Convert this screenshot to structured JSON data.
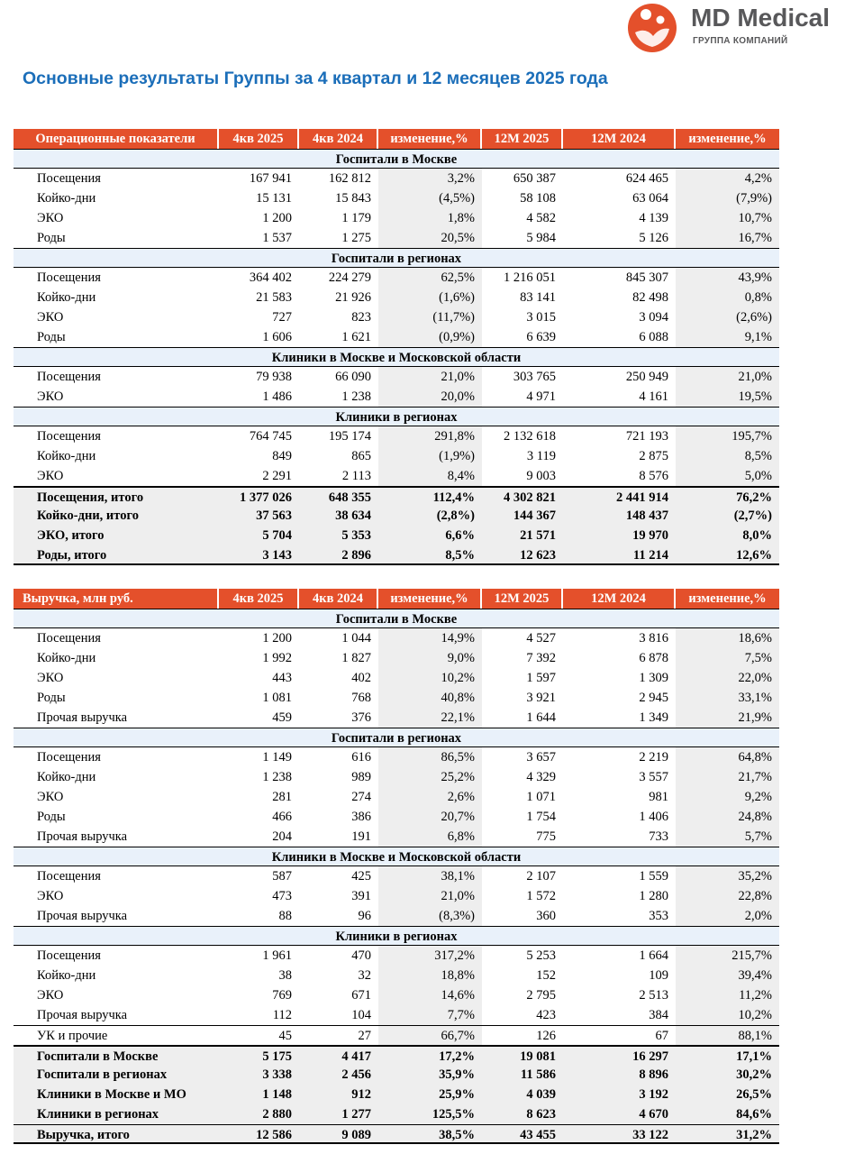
{
  "logo": {
    "name": "MD Medical",
    "subtitle": "ГРУППА КОМПАНИЙ"
  },
  "title": "Основные результаты Группы за 4 квартал и 12 месяцев 2025 года",
  "tables": [
    {
      "header": [
        "Операционные показатели",
        "4кв 2025",
        "4кв 2024",
        "изменение,%",
        "12М 2025",
        "12М 2024",
        "изменение,%"
      ],
      "sections": [
        {
          "title": "Госпитали в Москве",
          "rows": [
            [
              "Посещения",
              "167 941",
              "162 812",
              "3,2%",
              "650 387",
              "624 465",
              "4,2%"
            ],
            [
              "Койко-дни",
              "15 131",
              "15 843",
              "(4,5%)",
              "58 108",
              "63 064",
              "(7,9%)"
            ],
            [
              "ЭКО",
              "1 200",
              "1 179",
              "1,8%",
              "4 582",
              "4 139",
              "10,7%"
            ],
            [
              "Роды",
              "1 537",
              "1 275",
              "20,5%",
              "5 984",
              "5 126",
              "16,7%"
            ]
          ]
        },
        {
          "title": "Госпитали в регионах",
          "rows": [
            [
              "Посещения",
              "364 402",
              "224 279",
              "62,5%",
              "1 216 051",
              "845 307",
              "43,9%"
            ],
            [
              "Койко-дни",
              "21 583",
              "21 926",
              "(1,6%)",
              "83 141",
              "82 498",
              "0,8%"
            ],
            [
              "ЭКО",
              "727",
              "823",
              "(11,7%)",
              "3 015",
              "3 094",
              "(2,6%)"
            ],
            [
              "Роды",
              "1 606",
              "1 621",
              "(0,9%)",
              "6 639",
              "6 088",
              "9,1%"
            ]
          ]
        },
        {
          "title": "Клиники в Москве и Московской области",
          "rows": [
            [
              "Посещения",
              "79 938",
              "66 090",
              "21,0%",
              "303 765",
              "250 949",
              "21,0%"
            ],
            [
              "ЭКО",
              "1 486",
              "1 238",
              "20,0%",
              "4 971",
              "4 161",
              "19,5%"
            ]
          ]
        },
        {
          "title": "Клиники в регионах",
          "rows": [
            [
              "Посещения",
              "764 745",
              "195 174",
              "291,8%",
              "2 132 618",
              "721 193",
              "195,7%"
            ],
            [
              "Койко-дни",
              "849",
              "865",
              "(1,9%)",
              "3 119",
              "2 875",
              "8,5%"
            ],
            [
              "ЭКО",
              "2 291",
              "2 113",
              "8,4%",
              "9 003",
              "8 576",
              "5,0%"
            ]
          ]
        }
      ],
      "totals": [
        [
          "Посещения, итого",
          "1 377 026",
          "648 355",
          "112,4%",
          "4 302 821",
          "2 441 914",
          "76,2%"
        ],
        [
          "Койко-дни, итого",
          "37 563",
          "38 634",
          "(2,8%)",
          "144 367",
          "148 437",
          "(2,7%)"
        ],
        [
          "ЭКО, итого",
          "5 704",
          "5 353",
          "6,6%",
          "21 571",
          "19 970",
          "8,0%"
        ],
        [
          "Роды, итого",
          "3 143",
          "2 896",
          "8,5%",
          "12 623",
          "11 214",
          "12,6%"
        ]
      ]
    },
    {
      "header": [
        "Выручка, млн руб.",
        "4кв 2025",
        "4кв 2024",
        "изменение,%",
        "12М 2025",
        "12М 2024",
        "изменение,%"
      ],
      "sections": [
        {
          "title": "Госпитали в Москве",
          "rows": [
            [
              "Посещения",
              "1 200",
              "1 044",
              "14,9%",
              "4 527",
              "3 816",
              "18,6%"
            ],
            [
              "Койко-дни",
              "1 992",
              "1 827",
              "9,0%",
              "7 392",
              "6 878",
              "7,5%"
            ],
            [
              "ЭКО",
              "443",
              "402",
              "10,2%",
              "1 597",
              "1 309",
              "22,0%"
            ],
            [
              "Роды",
              "1 081",
              "768",
              "40,8%",
              "3 921",
              "2 945",
              "33,1%"
            ],
            [
              "Прочая выручка",
              "459",
              "376",
              "22,1%",
              "1 644",
              "1 349",
              "21,9%"
            ]
          ]
        },
        {
          "title": "Госпитали в регионах",
          "rows": [
            [
              "Посещения",
              "1 149",
              "616",
              "86,5%",
              "3 657",
              "2 219",
              "64,8%"
            ],
            [
              "Койко-дни",
              "1 238",
              "989",
              "25,2%",
              "4 329",
              "3 557",
              "21,7%"
            ],
            [
              "ЭКО",
              "281",
              "274",
              "2,6%",
              "1 071",
              "981",
              "9,2%"
            ],
            [
              "Роды",
              "466",
              "386",
              "20,7%",
              "1 754",
              "1 406",
              "24,8%"
            ],
            [
              "Прочая выручка",
              "204",
              "191",
              "6,8%",
              "775",
              "733",
              "5,7%"
            ]
          ]
        },
        {
          "title": "Клиники в Москве и Московской области",
          "rows": [
            [
              "Посещения",
              "587",
              "425",
              "38,1%",
              "2 107",
              "1 559",
              "35,2%"
            ],
            [
              "ЭКО",
              "473",
              "391",
              "21,0%",
              "1 572",
              "1 280",
              "22,8%"
            ],
            [
              "Прочая выручка",
              "88",
              "96",
              "(8,3%)",
              "360",
              "353",
              "2,0%"
            ]
          ]
        },
        {
          "title": "Клиники в регионах",
          "rows": [
            [
              "Посещения",
              "1 961",
              "470",
              "317,2%",
              "5 253",
              "1 664",
              "215,7%"
            ],
            [
              "Койко-дни",
              "38",
              "32",
              "18,8%",
              "152",
              "109",
              "39,4%"
            ],
            [
              "ЭКО",
              "769",
              "671",
              "14,6%",
              "2 795",
              "2 513",
              "11,2%"
            ],
            [
              "Прочая выручка",
              "112",
              "104",
              "7,7%",
              "423",
              "384",
              "10,2%"
            ]
          ]
        }
      ],
      "other": [
        [
          "УК и прочие",
          "45",
          "27",
          "66,7%",
          "126",
          "67",
          "88,1%"
        ]
      ],
      "totals": [
        [
          "Госпитали в Москве",
          "5 175",
          "4 417",
          "17,2%",
          "19 081",
          "16 297",
          "17,1%"
        ],
        [
          "Госпитали в регионах",
          "3 338",
          "2 456",
          "35,9%",
          "11 586",
          "8 896",
          "30,2%"
        ],
        [
          "Клиники в Москве и МО",
          "1 148",
          "912",
          "25,9%",
          "4 039",
          "3 192",
          "26,5%"
        ],
        [
          "Клиники в регионах",
          "2 880",
          "1 277",
          "125,5%",
          "8 623",
          "4 670",
          "84,6%"
        ]
      ],
      "grand_total": [
        "Выручка, итого",
        "12 586",
        "9 089",
        "38,5%",
        "43 455",
        "33 122",
        "31,2%"
      ]
    }
  ]
}
